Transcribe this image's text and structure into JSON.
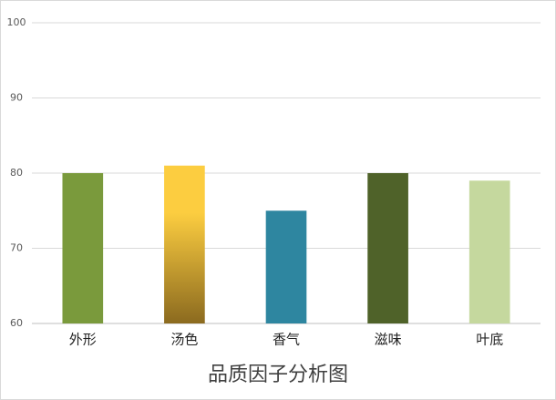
{
  "chart_data": {
    "type": "bar",
    "title": "品质因子分析图",
    "categories": [
      "外形",
      "汤色",
      "香气",
      "滋味",
      "叶底"
    ],
    "values": [
      80,
      81,
      75,
      80,
      79
    ],
    "colors": [
      "#7a9a3c",
      [
        "#fccd40",
        "#8b6a1f"
      ],
      "#2e86a0",
      "#4f6229",
      "#c5d89e"
    ],
    "ylim": [
      60,
      100
    ],
    "yticks": [
      60,
      70,
      80,
      90,
      100
    ],
    "grid": true
  }
}
